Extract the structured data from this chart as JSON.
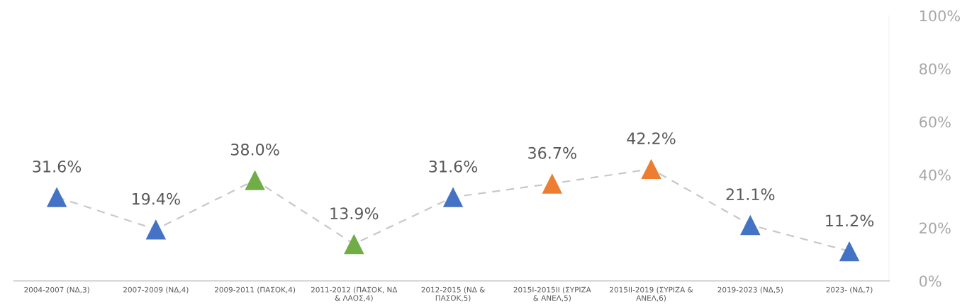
{
  "chart_data": {
    "type": "line",
    "categories": [
      "2004-2007 (ΝΔ,3)",
      "2007-2009 (ΝΔ,4)",
      "2009-2011 (ΠΑΣΟΚ,4)",
      "2011-2012 (ΠΑΣΟΚ, ΝΔ & ΛΑΟΣ,4)",
      "2012-2015 (ΝΔ & ΠΑΣΟΚ,5)",
      "2015Ι-2015ΙΙ (ΣΥΡΙΖΑ & ΑΝΕΛ,5)",
      "2015ΙΙ-2019 (ΣΥΡΙΖΑ & ΑΝΕΛ,6)",
      "2019-2023 (ΝΔ,5)",
      "2023- (ΝΔ,7)"
    ],
    "series": [
      {
        "color": "#c8c8c8",
        "values": [
          31.6,
          19.4,
          38.0,
          13.9,
          31.6,
          36.7,
          42.2,
          21.1,
          11.2
        ],
        "colors": [
          "#4472c4",
          "#4472c4",
          "#70ad47",
          "#70ad47",
          "#4472c4",
          "#ed7d31",
          "#ed7d31",
          "#4472c4",
          "#4472c4"
        ],
        "value_labels": [
          "31.6%",
          "19.4%",
          "38.0%",
          "13.9%",
          "31.6%",
          "36.7%",
          "42.2%",
          "21.1%",
          "11.2%"
        ]
      }
    ],
    "ylim": [
      0,
      100
    ],
    "yticks": [
      {
        "value": 0,
        "label": "0%"
      },
      {
        "value": 20,
        "label": "20%"
      },
      {
        "value": 40,
        "label": "40%"
      },
      {
        "value": 60,
        "label": "60%"
      },
      {
        "value": 80,
        "label": "80%"
      },
      {
        "value": 100,
        "label": "100%"
      }
    ],
    "marker": "triangle",
    "line_style": "dashed",
    "grid": false,
    "legend": false
  }
}
